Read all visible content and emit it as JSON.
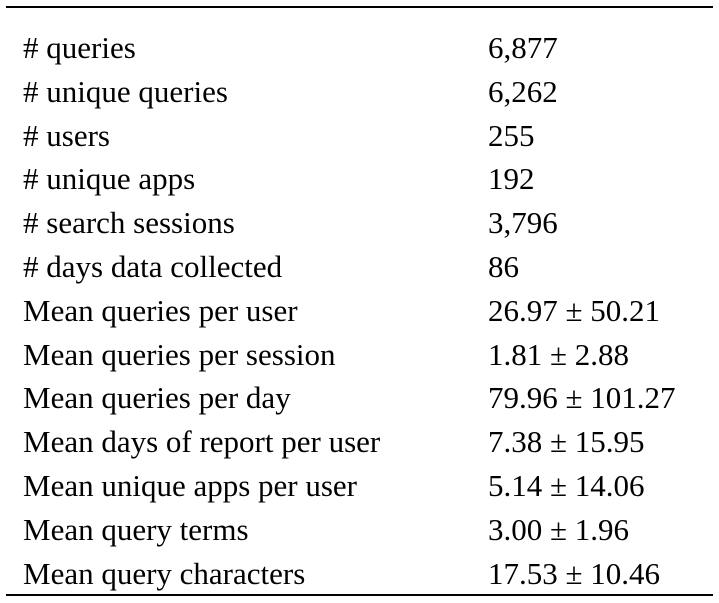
{
  "rows": [
    {
      "label": "# queries",
      "value": "6,877"
    },
    {
      "label": "# unique queries",
      "value": "6,262"
    },
    {
      "label": "# users",
      "value": "255"
    },
    {
      "label": "# unique apps",
      "value": "192"
    },
    {
      "label": "# search sessions",
      "value": "3,796"
    },
    {
      "label": "# days data collected",
      "value": "86"
    },
    {
      "label": "Mean queries per user",
      "value": "26.97 ± 50.21"
    },
    {
      "label": "Mean queries per session",
      "value": "1.81 ± 2.88"
    },
    {
      "label": "Mean queries per day",
      "value": "79.96 ± 101.27"
    },
    {
      "label": "Mean days of report per user",
      "value": "7.38 ± 15.95"
    },
    {
      "label": "Mean unique apps per user",
      "value": "5.14 ± 14.06"
    },
    {
      "label": "Mean query terms",
      "value": "3.00 ± 1.96"
    },
    {
      "label": "Mean query characters",
      "value": "17.53 ± 10.46"
    }
  ]
}
